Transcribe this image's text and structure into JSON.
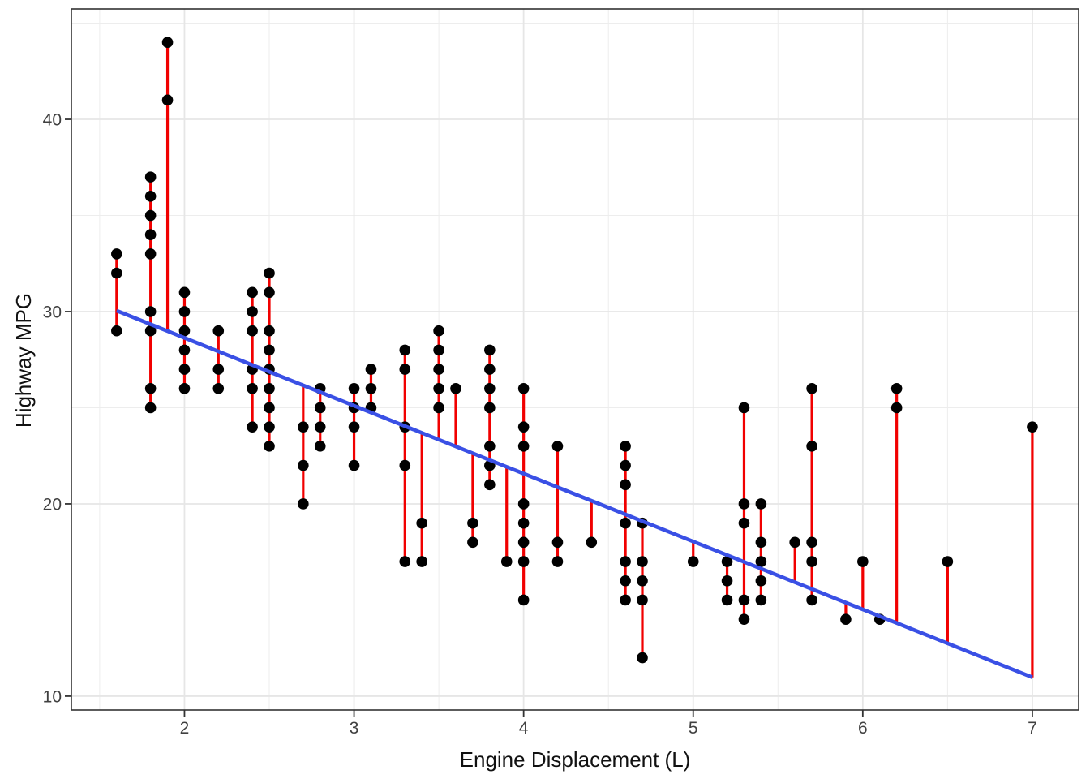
{
  "chart_data": {
    "type": "scatter",
    "title": "",
    "xlabel": "Engine Displacement (L)",
    "ylabel": "Highway MPG",
    "x_axis": {
      "ticks": [
        2,
        3,
        4,
        5,
        6,
        7
      ],
      "minor_ticks": [
        1.5,
        2.5,
        3.5,
        4.5,
        5.5,
        6.5
      ],
      "lim": [
        1.333,
        7.273
      ]
    },
    "y_axis": {
      "ticks": [
        10,
        20,
        30,
        40
      ],
      "minor_ticks": [
        15,
        25,
        35,
        45
      ],
      "lim": [
        9.28,
        45.74
      ]
    },
    "grid": true,
    "legend": "none",
    "description": "Scatter plot of highway MPG vs engine displacement with linear regression line and red residual segments",
    "groups": [
      {
        "x": 1.6,
        "y": [
          29,
          32,
          33
        ]
      },
      {
        "x": 1.8,
        "y": [
          25,
          26,
          29,
          30,
          33,
          34,
          35,
          36,
          37
        ]
      },
      {
        "x": 1.9,
        "y": [
          41,
          44
        ]
      },
      {
        "x": 2.0,
        "y": [
          26,
          27,
          28,
          29,
          30,
          31
        ]
      },
      {
        "x": 2.2,
        "y": [
          26,
          27,
          29
        ]
      },
      {
        "x": 2.4,
        "y": [
          24,
          26,
          27,
          29,
          30,
          31
        ]
      },
      {
        "x": 2.5,
        "y": [
          23,
          24,
          25,
          26,
          27,
          28,
          29,
          31,
          32
        ]
      },
      {
        "x": 2.7,
        "y": [
          20,
          22,
          24
        ]
      },
      {
        "x": 2.8,
        "y": [
          23,
          24,
          25,
          26
        ]
      },
      {
        "x": 3.0,
        "y": [
          22,
          24,
          25,
          26
        ]
      },
      {
        "x": 3.1,
        "y": [
          25,
          26,
          27
        ]
      },
      {
        "x": 3.3,
        "y": [
          17,
          22,
          24,
          27,
          28
        ]
      },
      {
        "x": 3.4,
        "y": [
          17,
          19
        ]
      },
      {
        "x": 3.5,
        "y": [
          25,
          26,
          27,
          28,
          29
        ]
      },
      {
        "x": 3.6,
        "y": [
          26
        ]
      },
      {
        "x": 3.7,
        "y": [
          18,
          19
        ]
      },
      {
        "x": 3.8,
        "y": [
          21,
          22,
          23,
          25,
          26,
          27,
          28
        ]
      },
      {
        "x": 3.9,
        "y": [
          17
        ]
      },
      {
        "x": 4.0,
        "y": [
          15,
          17,
          18,
          19,
          20,
          23,
          24,
          26
        ]
      },
      {
        "x": 4.2,
        "y": [
          17,
          18,
          23
        ]
      },
      {
        "x": 4.4,
        "y": [
          18
        ]
      },
      {
        "x": 4.6,
        "y": [
          15,
          16,
          17,
          19,
          21,
          22,
          23
        ]
      },
      {
        "x": 4.7,
        "y": [
          12,
          15,
          16,
          17,
          19
        ]
      },
      {
        "x": 5.0,
        "y": [
          17
        ]
      },
      {
        "x": 5.2,
        "y": [
          15,
          16,
          17
        ]
      },
      {
        "x": 5.3,
        "y": [
          14,
          15,
          19,
          20,
          25
        ]
      },
      {
        "x": 5.4,
        "y": [
          15,
          16,
          17,
          18,
          20
        ]
      },
      {
        "x": 5.6,
        "y": [
          18
        ]
      },
      {
        "x": 5.7,
        "y": [
          15,
          17,
          18,
          23,
          26
        ]
      },
      {
        "x": 5.9,
        "y": [
          14
        ]
      },
      {
        "x": 6.0,
        "y": [
          17
        ]
      },
      {
        "x": 6.1,
        "y": [
          14
        ]
      },
      {
        "x": 6.2,
        "y": [
          25,
          26
        ]
      },
      {
        "x": 6.5,
        "y": [
          17
        ]
      },
      {
        "x": 7.0,
        "y": [
          24
        ]
      }
    ],
    "regression": {
      "intercept": 35.698,
      "slope": -3.531,
      "x_start": 1.6,
      "x_end": 7.0
    },
    "colors": {
      "point": "#000000",
      "residual": "#F10000",
      "regression_line": "#3A50E5",
      "grid_major": "#E6E6E6",
      "grid_minor": "#EDEDED",
      "panel_border": "#333333",
      "tick_mark": "#333333",
      "tick_label": "#404040",
      "axis_title": "#111111",
      "background": "#FFFFFF"
    }
  }
}
